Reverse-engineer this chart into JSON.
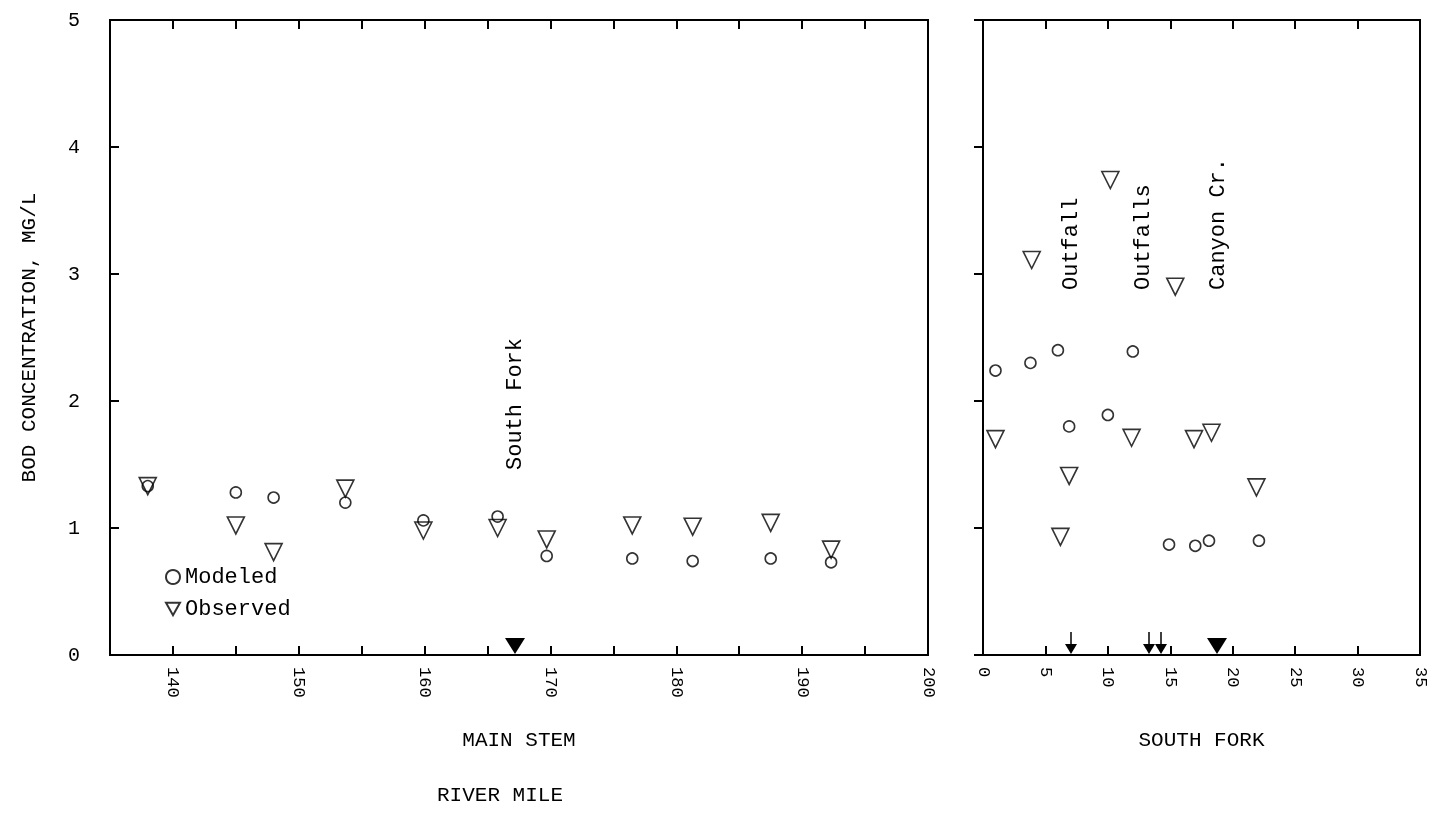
{
  "chart_data": [
    {
      "type": "scatter",
      "xlabel": "MAIN STEM",
      "ylabel": "BOD CONCENTRATION, MG/L",
      "legend": "bottom left",
      "xlim": [
        135,
        200
      ],
      "ylim": [
        0,
        5
      ],
      "xticks": [
        140,
        {
          "value": 145,
          "label": null
        },
        150,
        {
          "value": 155,
          "label": null
        },
        160,
        {
          "value": 165,
          "label": null
        },
        170,
        {
          "value": 175,
          "label": null
        },
        180,
        {
          "value": 185,
          "label": null
        },
        190,
        {
          "value": 195,
          "label": null
        },
        200
      ],
      "yticks": [
        0,
        1,
        2,
        3,
        4,
        5
      ],
      "annotations": [
        "South Fork",
        "RIVER MILE"
      ],
      "series": [
        {
          "name": "Modeled",
          "color": "#000000",
          "marker": "circle",
          "x": [
            138,
            145,
            148,
            153.7,
            159.9,
            165.8,
            169.7,
            176.5,
            181.3,
            187.5,
            192.3
          ],
          "values": [
            1.33,
            1.28,
            1.24,
            1.2,
            1.06,
            1.09,
            0.78,
            0.76,
            0.74,
            0.76,
            0.73
          ]
        },
        {
          "name": "Observed",
          "color": "#000000",
          "marker": "triangle",
          "x": [
            138,
            145,
            148,
            153.7,
            159.9,
            165.8,
            169.7,
            176.5,
            181.3,
            187.5,
            192.3
          ],
          "values": [
            1.33,
            1.02,
            0.81,
            1.31,
            0.98,
            1.0,
            0.91,
            1.02,
            1.01,
            1.04,
            0.83
          ]
        }
      ]
    },
    {
      "type": "scatter",
      "xlabel": "SOUTH FORK",
      "xlim": [
        0,
        35
      ],
      "ylim": [
        0,
        5
      ],
      "xticks": [
        0,
        5,
        10,
        15,
        20,
        25,
        30,
        35
      ],
      "yticks": [
        0,
        1,
        2,
        3,
        4,
        5
      ],
      "tick_labels": "x",
      "annotations": [
        "Outfall",
        "Outfalls",
        "Canyon Cr."
      ],
      "series": [
        {
          "color": "#000000",
          "marker": "circle",
          "x": [
            1.0,
            3.8,
            6.0,
            6.9,
            10.0,
            12.0,
            14.9,
            17.0,
            18.1,
            22.1
          ],
          "values": [
            2.24,
            2.3,
            2.4,
            1.8,
            1.89,
            2.39,
            0.87,
            0.86,
            0.9,
            0.9
          ]
        },
        {
          "color": "#000000",
          "marker": "triangle",
          "x": [
            1.0,
            3.9,
            6.2,
            6.9,
            10.2,
            11.9,
            15.4,
            16.9,
            18.3,
            21.9
          ],
          "values": [
            1.7,
            3.11,
            0.93,
            1.41,
            3.74,
            1.71,
            2.9,
            1.7,
            1.75,
            1.32
          ]
        }
      ]
    }
  ]
}
